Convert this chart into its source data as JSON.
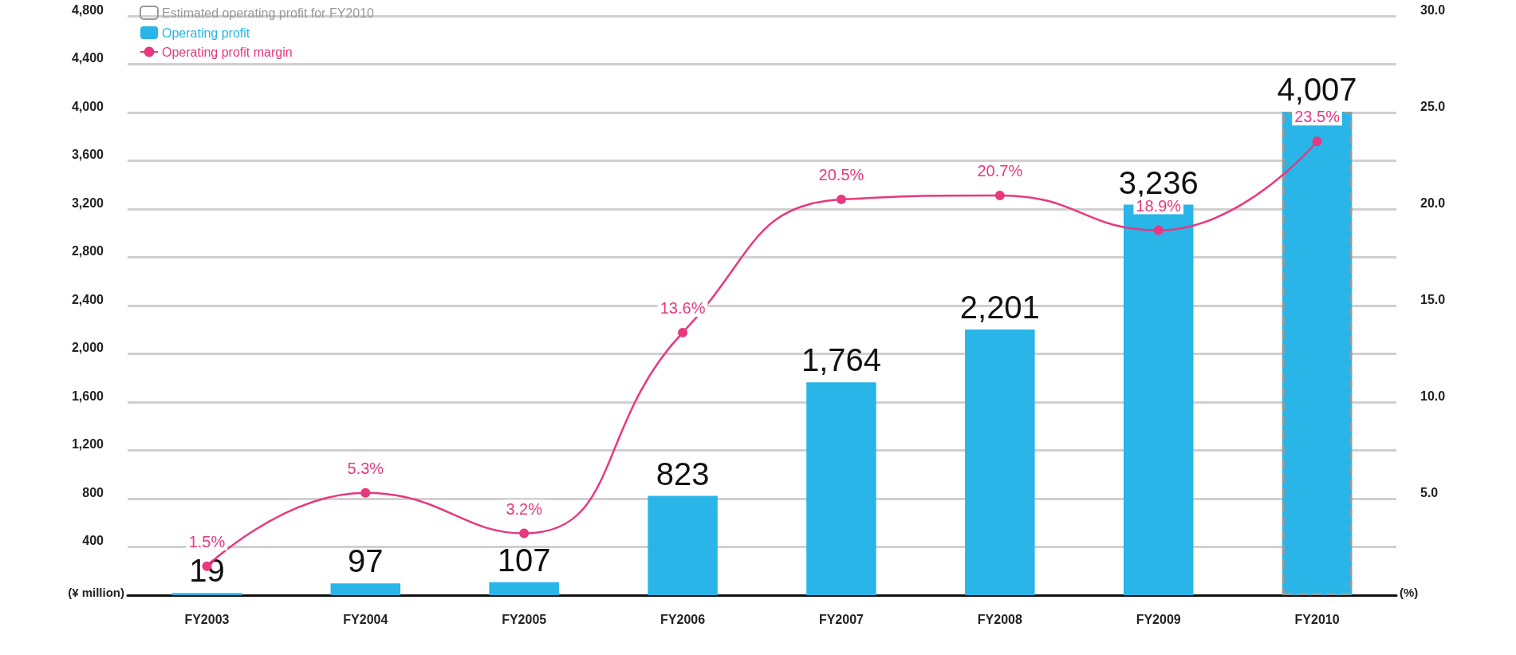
{
  "chart_data": {
    "type": "bar",
    "ylabel": "(¥ million)",
    "y2label": "(%)",
    "categories": [
      "FY2003",
      "FY2004",
      "FY2005",
      "FY2006",
      "FY2007",
      "FY2008",
      "FY2009",
      "FY2010"
    ],
    "series": [
      {
        "name": "Estimated operating profit for FY2010",
        "color": "#999999",
        "line_style": "dashed",
        "values": [
          null,
          null,
          null,
          null,
          null,
          null,
          null,
          4007
        ]
      },
      {
        "name": "Operating profit",
        "color": "#29b5e8",
        "values": [
          19,
          97,
          107,
          823,
          1764,
          2201,
          3236,
          4007
        ],
        "value_labels": [
          "19",
          "97",
          "107",
          "823",
          "1,764",
          "2,201",
          "3,236",
          "4,007"
        ]
      },
      {
        "name": "Operating profit margin",
        "type": "line",
        "axis": "y2",
        "color": "#e8387f",
        "marker": "circle",
        "values": [
          1.5,
          5.3,
          3.2,
          13.6,
          20.5,
          20.7,
          18.9,
          23.5
        ],
        "value_labels": [
          "1.5%",
          "5.3%",
          "3.2%",
          "13.6%",
          "20.5%",
          "20.7%",
          "18.9%",
          "23.5%"
        ]
      }
    ],
    "ylim": [
      0,
      4800
    ],
    "yticks": [
      400,
      800,
      {
        "value": 1200,
        "label": "1,200"
      },
      {
        "value": 1600,
        "label": "1,600"
      },
      {
        "value": 2000,
        "label": "2,000"
      },
      {
        "value": 2400,
        "label": "2,400"
      },
      {
        "value": 2800,
        "label": "2,800"
      },
      {
        "value": 3200,
        "label": "3,200"
      },
      {
        "value": 3600,
        "label": "3,600"
      },
      {
        "value": 4000,
        "label": "4,000"
      },
      {
        "value": 4400,
        "label": "4,400"
      },
      {
        "value": 4800,
        "label": "4,800"
      }
    ],
    "y2lim": [
      0,
      30
    ],
    "y2ticks": [
      {
        "value": 5,
        "label": "5.0"
      },
      {
        "value": 10,
        "label": "10.0"
      },
      {
        "value": 15,
        "label": "15.0"
      },
      {
        "value": 20,
        "label": "20.0"
      },
      {
        "value": 25,
        "label": "25.0"
      },
      {
        "value": 30,
        "label": "30.0"
      }
    ],
    "grid": "y",
    "legend": "top left"
  }
}
